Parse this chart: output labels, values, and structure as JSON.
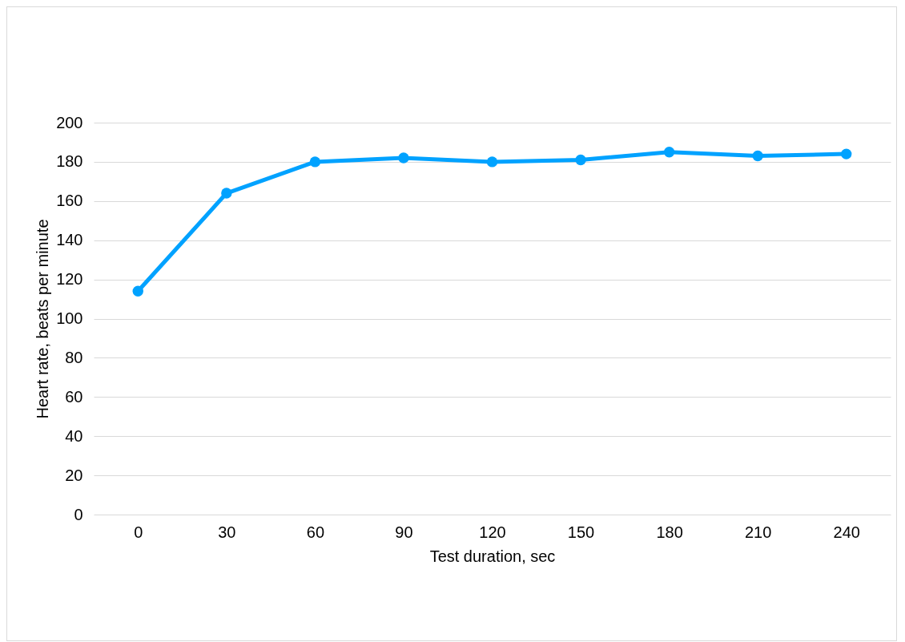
{
  "chart_data": {
    "type": "line",
    "xlabel": "Test duration, sec",
    "ylabel": "Heart rate, beats per minute",
    "categories": [
      "0",
      "30",
      "60",
      "90",
      "120",
      "150",
      "180",
      "210",
      "240"
    ],
    "series": [
      {
        "color": "#00a2ff",
        "values": [
          114,
          164,
          180,
          182,
          180,
          181,
          185,
          183,
          184
        ]
      }
    ],
    "ylim": [
      0,
      200
    ],
    "yticks": [
      0,
      20,
      40,
      60,
      80,
      100,
      120,
      140,
      160,
      180,
      200
    ],
    "grid": "y",
    "marker": "circle",
    "line_style": "solid",
    "legend": false
  }
}
